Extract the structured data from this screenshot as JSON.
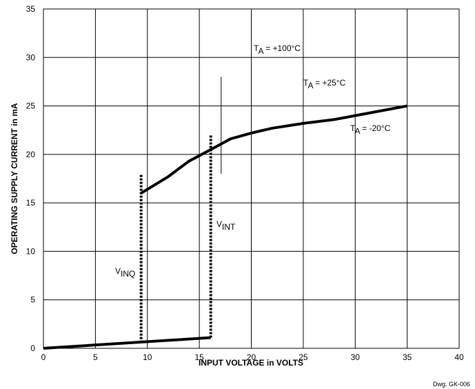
{
  "chart_data": {
    "type": "line",
    "xlabel": "INPUT VOLTAGE in VOLTS",
    "ylabel": "OPERATING SUPPLY CURRENT in mA",
    "footnote": "Dwg. GK-006",
    "xlim": [
      0,
      40
    ],
    "xticks": [
      0,
      5,
      10,
      15,
      20,
      25,
      30,
      35,
      40
    ],
    "ylim": [
      0,
      35
    ],
    "yticks": [
      0,
      5,
      10,
      15,
      20,
      25,
      30,
      35
    ],
    "grid": true,
    "series": [
      {
        "color": "#000000",
        "style": "solid",
        "width": 4,
        "x": [
          0,
          16.1
        ],
        "values": [
          0,
          1.1
        ]
      },
      {
        "color": "#000000",
        "style": "solid",
        "width": 4,
        "x": [
          9.4,
          12,
          14,
          16.1,
          18,
          20,
          22,
          25,
          28,
          30,
          35
        ],
        "values": [
          16,
          17.7,
          19.3,
          20.5,
          21.6,
          22.2,
          22.7,
          23.2,
          23.6,
          24,
          25
        ]
      },
      {
        "color": "#000000",
        "style": "dashed",
        "width": 4,
        "x": [
          9.4,
          9.4
        ],
        "values": [
          0.6,
          18
        ]
      },
      {
        "color": "#000000",
        "style": "dashed",
        "width": 4,
        "x": [
          16.1,
          16.1
        ],
        "values": [
          1.1,
          22
        ]
      },
      {
        "color": "#000000",
        "style": "solid",
        "width": 1,
        "x": [
          17.1,
          17.1
        ],
        "values": [
          18,
          28
        ]
      }
    ],
    "annotations": [
      {
        "main": "T",
        "sub": "A",
        "rest": " = +100°C"
      },
      {
        "main": "T",
        "sub": "A",
        "rest": " = +25°C"
      },
      {
        "main": "T",
        "sub": "A",
        "rest": " = -20°C"
      },
      {
        "main": "V",
        "sub": "INT"
      },
      {
        "main": "V",
        "sub": "INQ"
      }
    ]
  }
}
